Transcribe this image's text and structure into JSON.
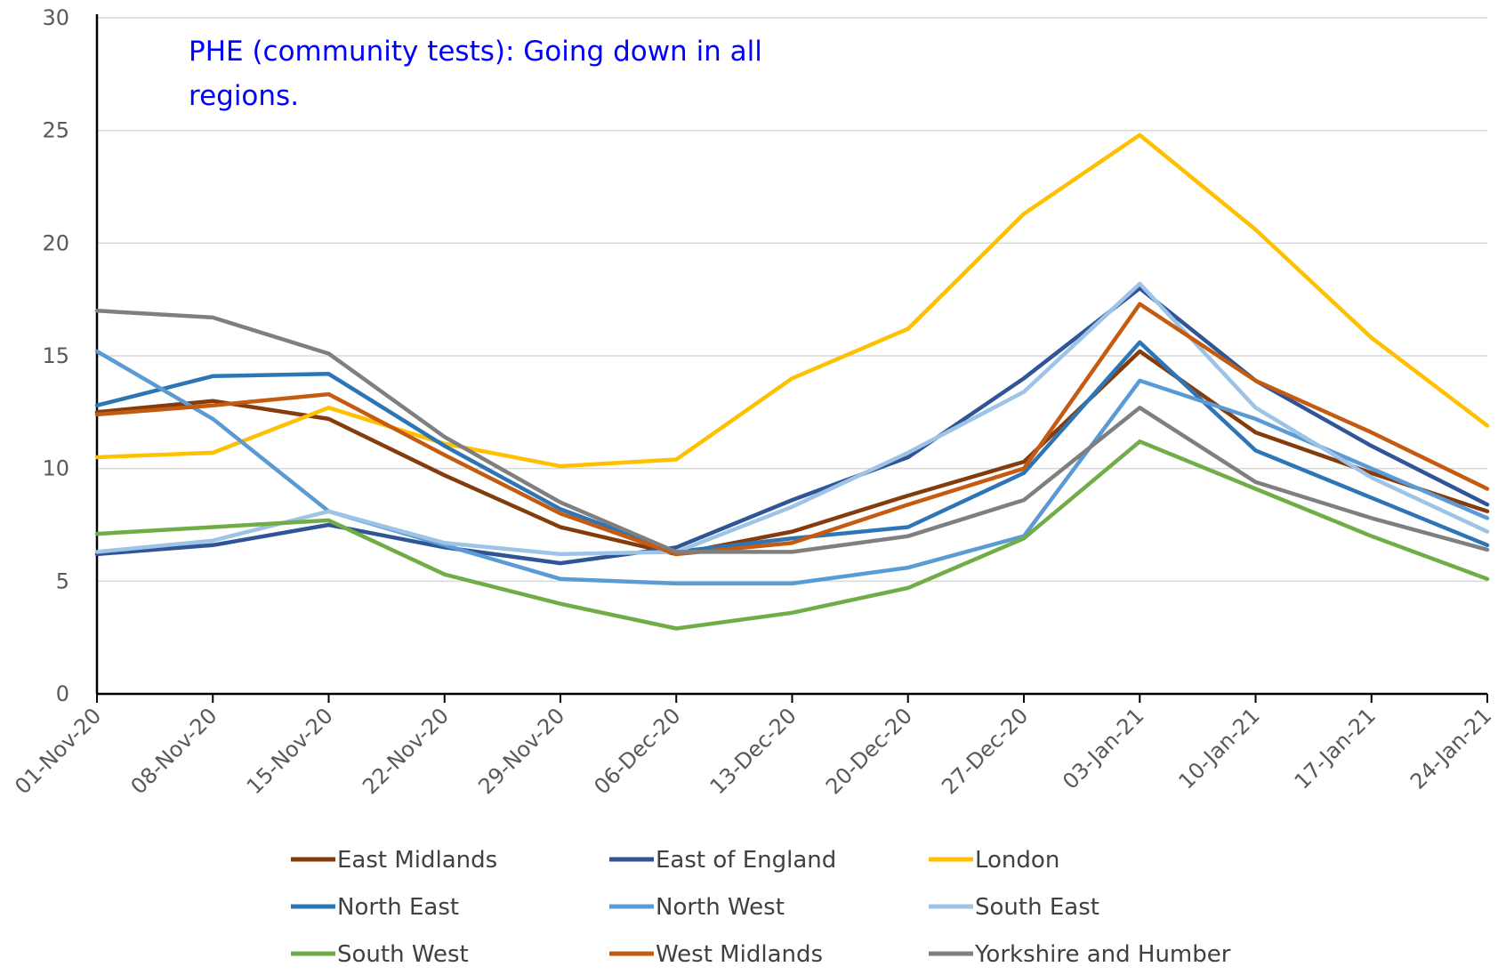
{
  "chart_data": {
    "type": "line",
    "title": "",
    "xlabel": "",
    "ylabel": "",
    "annotation": [
      "PHE (community tests): Going down in all",
      "regions."
    ],
    "ylim": [
      0,
      30
    ],
    "yticks": [
      0,
      5,
      10,
      15,
      20,
      25,
      30
    ],
    "grid": true,
    "legend_position": "bottom",
    "categories": [
      "01-Nov-20",
      "08-Nov-20",
      "15-Nov-20",
      "22-Nov-20",
      "29-Nov-20",
      "06-Dec-20",
      "13-Dec-20",
      "20-Dec-20",
      "27-Dec-20",
      "03-Jan-21",
      "10-Jan-21",
      "17-Jan-21",
      "24-Jan-21"
    ],
    "series": [
      {
        "name": "East Midlands",
        "color": "#843c0c",
        "values": [
          12.5,
          13.0,
          12.2,
          9.7,
          7.4,
          6.2,
          7.2,
          8.8,
          10.3,
          15.2,
          11.6,
          9.8,
          8.1
        ]
      },
      {
        "name": "East of England",
        "color": "#2f5597",
        "values": [
          6.2,
          6.6,
          7.5,
          6.5,
          5.8,
          6.5,
          8.6,
          10.5,
          14.0,
          18.0,
          13.9,
          11.0,
          8.4
        ]
      },
      {
        "name": "London",
        "color": "#ffc000",
        "values": [
          10.5,
          10.7,
          12.7,
          11.1,
          10.1,
          10.4,
          14.0,
          16.2,
          21.3,
          24.8,
          20.6,
          15.8,
          11.9
        ]
      },
      {
        "name": "North East",
        "color": "#2e75b6",
        "values": [
          12.8,
          14.1,
          14.2,
          11.0,
          8.2,
          6.3,
          6.9,
          7.4,
          9.8,
          15.6,
          10.8,
          8.7,
          6.6
        ]
      },
      {
        "name": "North West",
        "color": "#5b9bd5",
        "values": [
          15.2,
          12.2,
          8.1,
          6.6,
          5.1,
          4.9,
          4.9,
          5.6,
          7.0,
          13.9,
          12.2,
          10.0,
          7.8
        ]
      },
      {
        "name": "South East",
        "color": "#9dc3e6",
        "values": [
          6.3,
          6.8,
          8.1,
          6.7,
          6.2,
          6.3,
          8.3,
          10.7,
          13.4,
          18.2,
          12.7,
          9.6,
          7.2
        ]
      },
      {
        "name": "South West",
        "color": "#70ad47",
        "values": [
          7.1,
          7.4,
          7.7,
          5.3,
          4.0,
          2.9,
          3.6,
          4.7,
          6.9,
          11.2,
          9.1,
          7.0,
          5.1
        ]
      },
      {
        "name": "West Midlands",
        "color": "#c55a11",
        "values": [
          12.4,
          12.8,
          13.3,
          10.6,
          8.0,
          6.2,
          6.7,
          8.4,
          10.0,
          17.3,
          13.9,
          11.6,
          9.1
        ]
      },
      {
        "name": "Yorkshire and Humber",
        "color": "#7f7f7f",
        "values": [
          17.0,
          16.7,
          15.1,
          11.4,
          8.5,
          6.3,
          6.3,
          7.0,
          8.6,
          12.7,
          9.4,
          7.8,
          6.4
        ]
      }
    ]
  }
}
